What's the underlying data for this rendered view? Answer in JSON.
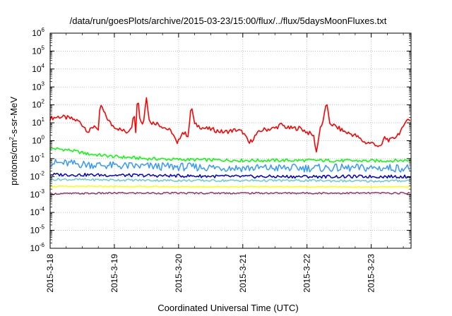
{
  "chart_data": {
    "type": "line",
    "title": "/data/run/goesPlots/archive/2015-03-23/15:00/flux/../flux/5daysMoonFluxes.txt",
    "xlabel": "Coordinated Universal Time (UTC)",
    "ylabel": "protons/cm2-s-sr-MeV",
    "ylabel_parts": {
      "pre": "protons/cm",
      "sup": "2",
      "post": "-s-sr-MeV"
    },
    "yscale": "log",
    "ylim": [
      1e-06,
      1000000.0
    ],
    "y_tick_exponents": [
      -6,
      -5,
      -4,
      -3,
      -2,
      -1,
      0,
      1,
      2,
      3,
      4,
      5,
      6
    ],
    "y_tick_base": "10",
    "xlim_days": [
      0,
      5.62
    ],
    "x_ticks": [
      {
        "day": 0,
        "label": "2015-3-18"
      },
      {
        "day": 1,
        "label": "2015-3-19"
      },
      {
        "day": 2,
        "label": "2015-3-20"
      },
      {
        "day": 3,
        "label": "2015-3-21"
      },
      {
        "day": 4,
        "label": "2015-3-22"
      },
      {
        "day": 5,
        "label": "2015-3-23"
      }
    ],
    "grid": true,
    "series": [
      {
        "color": "#ff0000",
        "key_points": [
          [
            0,
            18
          ],
          [
            0.15,
            22
          ],
          [
            0.3,
            18
          ],
          [
            0.45,
            12
          ],
          [
            0.55,
            5
          ],
          [
            0.6,
            3
          ],
          [
            0.7,
            8
          ],
          [
            0.75,
            3
          ],
          [
            0.78,
            120
          ],
          [
            0.85,
            30
          ],
          [
            0.95,
            8
          ],
          [
            1.1,
            4
          ],
          [
            1.2,
            3
          ],
          [
            1.29,
            9
          ],
          [
            1.3,
            200
          ],
          [
            1.33,
            2
          ],
          [
            1.36,
            400
          ],
          [
            1.4,
            15
          ],
          [
            1.45,
            8
          ],
          [
            1.5,
            300
          ],
          [
            1.55,
            10
          ],
          [
            1.65,
            10
          ],
          [
            1.8,
            5
          ],
          [
            1.9,
            3
          ],
          [
            1.98,
            0.6
          ],
          [
            2.05,
            3
          ],
          [
            2.15,
            2
          ],
          [
            2.2,
            100
          ],
          [
            2.25,
            8
          ],
          [
            2.4,
            5
          ],
          [
            2.55,
            4
          ],
          [
            2.7,
            3
          ],
          [
            2.9,
            4
          ],
          [
            3.0,
            3
          ],
          [
            3.1,
            0.7
          ],
          [
            3.2,
            2
          ],
          [
            3.3,
            4
          ],
          [
            3.5,
            5
          ],
          [
            3.6,
            8
          ],
          [
            3.7,
            5
          ],
          [
            3.9,
            5
          ],
          [
            4.0,
            3
          ],
          [
            4.1,
            2
          ],
          [
            4.15,
            0.2
          ],
          [
            4.2,
            5
          ],
          [
            4.25,
            10
          ],
          [
            4.3,
            160
          ],
          [
            4.35,
            10
          ],
          [
            4.45,
            6
          ],
          [
            4.6,
            3
          ],
          [
            4.75,
            2
          ],
          [
            4.9,
            0.8
          ],
          [
            5.05,
            0.7
          ],
          [
            5.15,
            0.4
          ],
          [
            5.2,
            1.5
          ],
          [
            5.3,
            1
          ],
          [
            5.4,
            2
          ],
          [
            5.5,
            5
          ],
          [
            5.55,
            20
          ],
          [
            5.62,
            10
          ]
        ],
        "base": 5.0,
        "noise_amp": 0.5
      },
      {
        "color": "#00ff00",
        "key_points": [
          [
            0,
            0.38
          ],
          [
            0.3,
            0.3
          ],
          [
            0.6,
            0.18
          ],
          [
            1.0,
            0.13
          ],
          [
            1.5,
            0.1
          ],
          [
            2.0,
            0.09
          ],
          [
            3.0,
            0.08
          ],
          [
            4.0,
            0.08
          ],
          [
            5.0,
            0.075
          ],
          [
            5.62,
            0.08
          ]
        ],
        "base": 0.1,
        "noise_amp": 0.35
      },
      {
        "color": "#3399ff",
        "key_points": [
          [
            0,
            0.06
          ],
          [
            1,
            0.04
          ],
          [
            2,
            0.035
          ],
          [
            3,
            0.03
          ],
          [
            4,
            0.03
          ],
          [
            5,
            0.03
          ],
          [
            5.62,
            0.03
          ]
        ],
        "base": 0.035,
        "noise_amp": 0.9
      },
      {
        "color": "#0000cc",
        "key_points": [
          [
            0,
            0.013
          ],
          [
            1,
            0.012
          ],
          [
            2,
            0.011
          ],
          [
            3,
            0.01
          ],
          [
            4,
            0.01
          ],
          [
            5,
            0.01
          ],
          [
            5.62,
            0.01
          ]
        ],
        "base": 0.011,
        "noise_amp": 0.35
      },
      {
        "color": "#66cccc",
        "key_points": [
          [
            0,
            0.007
          ],
          [
            1,
            0.0065
          ],
          [
            2,
            0.006
          ],
          [
            3,
            0.006
          ],
          [
            4,
            0.006
          ],
          [
            5,
            0.0055
          ],
          [
            5.62,
            0.006
          ]
        ],
        "base": 0.006,
        "noise_amp": 0.25
      },
      {
        "color": "#ffff00",
        "key_points": [
          [
            0,
            0.0028
          ],
          [
            1,
            0.0028
          ],
          [
            2,
            0.0027
          ],
          [
            3,
            0.0027
          ],
          [
            4,
            0.0027
          ],
          [
            5,
            0.0026
          ],
          [
            5.62,
            0.0027
          ]
        ],
        "base": 0.0027,
        "noise_amp": 0.12
      },
      {
        "color": "#993366",
        "key_points": [
          [
            0,
            0.0011
          ],
          [
            1,
            0.0012
          ],
          [
            2,
            0.0012
          ],
          [
            3,
            0.0012
          ],
          [
            4,
            0.0012
          ],
          [
            5,
            0.0012
          ],
          [
            5.62,
            0.0012
          ]
        ],
        "base": 0.0012,
        "noise_amp": 0.18
      }
    ]
  }
}
